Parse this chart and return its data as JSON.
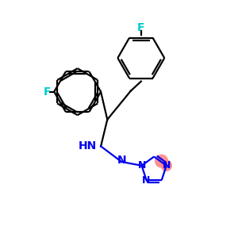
{
  "background_color": "#ffffff",
  "atom_colors": {
    "C": "#000000",
    "N": "#0000ee",
    "F": "#00cccc",
    "H": "#000000"
  },
  "bond_color": "#000000",
  "bond_width": 1.6,
  "font_size_atom": 10,
  "font_size_F": 10,
  "triazole_highlight_color": "#ff8888",
  "xlim": [
    -0.5,
    6.5
  ],
  "ylim": [
    -5.0,
    4.0
  ]
}
